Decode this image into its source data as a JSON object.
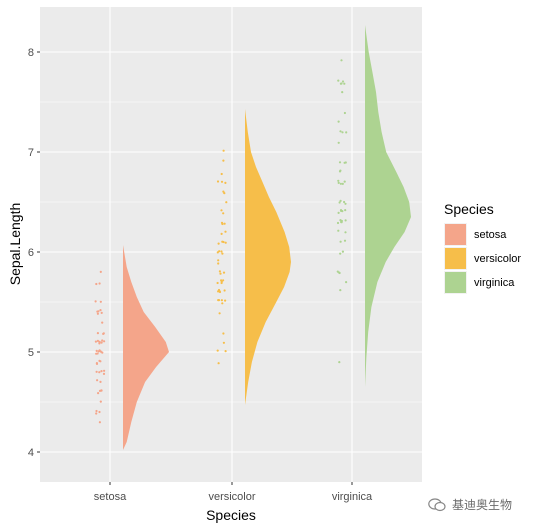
{
  "chart_data": {
    "type": "half-violin with jittered points",
    "xlabel": "Species",
    "ylabel": "Sepal.Length",
    "categories": [
      "setosa",
      "versicolor",
      "virginica"
    ],
    "y_ticks": [
      4,
      5,
      6,
      7,
      8
    ],
    "ylim": [
      3.7,
      8.45
    ],
    "grid": true,
    "legend": {
      "title": "Species",
      "position": "right",
      "entries": [
        "setosa",
        "versicolor",
        "virginica"
      ]
    },
    "colors": {
      "setosa": "#F4A58A",
      "versicolor": "#F6BE4A",
      "virginica": "#ADD391",
      "panel_background": "#EBEBEB",
      "grid": "#FFFFFF"
    },
    "series": [
      {
        "category": "setosa",
        "range": [
          4.0,
          6.07
        ],
        "density": [
          [
            4.02,
            0.0
          ],
          [
            4.1,
            0.08
          ],
          [
            4.3,
            0.18
          ],
          [
            4.5,
            0.3
          ],
          [
            4.7,
            0.48
          ],
          [
            4.85,
            0.72
          ],
          [
            5.0,
            1.0
          ],
          [
            5.1,
            0.93
          ],
          [
            5.25,
            0.7
          ],
          [
            5.4,
            0.45
          ],
          [
            5.55,
            0.3
          ],
          [
            5.7,
            0.18
          ],
          [
            5.85,
            0.08
          ],
          [
            6.07,
            0.0
          ]
        ],
        "points": [
          4.3,
          4.4,
          4.4,
          4.4,
          4.5,
          4.6,
          4.6,
          4.6,
          4.6,
          4.7,
          4.7,
          4.8,
          4.8,
          4.8,
          4.8,
          4.8,
          4.9,
          4.9,
          4.9,
          4.9,
          5.0,
          5.0,
          5.0,
          5.0,
          5.0,
          5.0,
          5.0,
          5.0,
          5.1,
          5.1,
          5.1,
          5.1,
          5.1,
          5.1,
          5.1,
          5.1,
          5.2,
          5.2,
          5.2,
          5.3,
          5.4,
          5.4,
          5.4,
          5.4,
          5.4,
          5.5,
          5.5,
          5.7,
          5.7,
          5.8
        ]
      },
      {
        "category": "versicolor",
        "range": [
          4.47,
          7.43
        ],
        "density": [
          [
            4.47,
            0.0
          ],
          [
            4.7,
            0.07
          ],
          [
            4.9,
            0.15
          ],
          [
            5.1,
            0.27
          ],
          [
            5.3,
            0.45
          ],
          [
            5.5,
            0.68
          ],
          [
            5.65,
            0.85
          ],
          [
            5.8,
            0.97
          ],
          [
            5.9,
            1.0
          ],
          [
            6.05,
            0.96
          ],
          [
            6.2,
            0.86
          ],
          [
            6.4,
            0.68
          ],
          [
            6.55,
            0.52
          ],
          [
            6.7,
            0.38
          ],
          [
            6.85,
            0.24
          ],
          [
            7.0,
            0.13
          ],
          [
            7.2,
            0.06
          ],
          [
            7.43,
            0.0
          ]
        ],
        "points": [
          4.9,
          5.0,
          5.0,
          5.1,
          5.2,
          5.4,
          5.5,
          5.5,
          5.5,
          5.5,
          5.5,
          5.6,
          5.6,
          5.6,
          5.6,
          5.6,
          5.7,
          5.7,
          5.7,
          5.7,
          5.7,
          5.8,
          5.8,
          5.8,
          5.9,
          5.9,
          6.0,
          6.0,
          6.0,
          6.0,
          6.1,
          6.1,
          6.1,
          6.1,
          6.2,
          6.2,
          6.3,
          6.3,
          6.3,
          6.4,
          6.4,
          6.5,
          6.6,
          6.6,
          6.7,
          6.7,
          6.7,
          6.8,
          6.9,
          7.0
        ]
      },
      {
        "category": "virginica",
        "range": [
          4.65,
          8.27
        ],
        "density": [
          [
            4.65,
            0.0
          ],
          [
            4.95,
            0.03
          ],
          [
            5.2,
            0.07
          ],
          [
            5.45,
            0.14
          ],
          [
            5.7,
            0.27
          ],
          [
            5.9,
            0.45
          ],
          [
            6.05,
            0.64
          ],
          [
            6.2,
            0.86
          ],
          [
            6.35,
            1.0
          ],
          [
            6.5,
            0.96
          ],
          [
            6.65,
            0.84
          ],
          [
            6.8,
            0.68
          ],
          [
            7.0,
            0.46
          ],
          [
            7.2,
            0.36
          ],
          [
            7.4,
            0.29
          ],
          [
            7.6,
            0.24
          ],
          [
            7.8,
            0.16
          ],
          [
            8.0,
            0.08
          ],
          [
            8.27,
            0.0
          ]
        ],
        "points": [
          4.9,
          5.6,
          5.7,
          5.8,
          5.8,
          5.8,
          6.0,
          6.0,
          6.1,
          6.1,
          6.2,
          6.2,
          6.3,
          6.3,
          6.3,
          6.3,
          6.3,
          6.3,
          6.4,
          6.4,
          6.4,
          6.4,
          6.4,
          6.5,
          6.5,
          6.5,
          6.5,
          6.7,
          6.7,
          6.7,
          6.7,
          6.7,
          6.8,
          6.8,
          6.9,
          6.9,
          6.9,
          7.1,
          7.2,
          7.2,
          7.2,
          7.3,
          7.4,
          7.6,
          7.7,
          7.7,
          7.7,
          7.7,
          7.7,
          7.9
        ]
      }
    ]
  },
  "watermark": {
    "text": "基迪奥生物"
  }
}
